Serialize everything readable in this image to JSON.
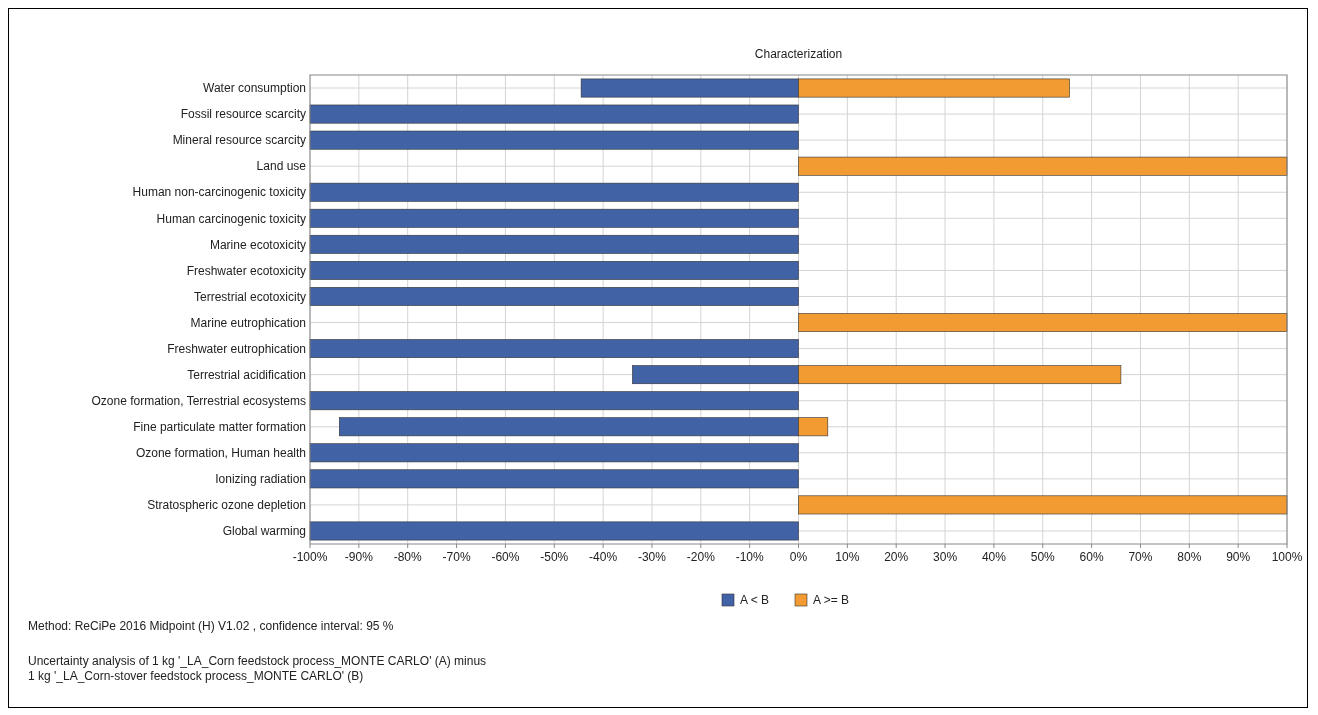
{
  "chart_data": {
    "type": "bar",
    "orientation": "horizontal",
    "stacked": true,
    "title": "Characterization",
    "categories": [
      "Water consumption",
      "Fossil resource scarcity",
      "Mineral resource scarcity",
      "Land use",
      "Human non-carcinogenic toxicity",
      "Human carcinogenic toxicity",
      "Marine ecotoxicity",
      "Freshwater ecotoxicity",
      "Terrestrial ecotoxicity",
      "Marine eutrophication",
      "Freshwater eutrophication",
      "Terrestrial acidification",
      "Ozone formation, Terrestrial ecosystems",
      "Fine particulate matter formation",
      "Ozone formation, Human health",
      "Ionizing radiation",
      "Stratospheric ozone depletion",
      "Global warming"
    ],
    "series": [
      {
        "name": "A < B",
        "color": "#4163a5",
        "values": [
          -44.5,
          -100,
          -100,
          0,
          -100,
          -100,
          -100,
          -100,
          -100,
          0,
          -100,
          -34,
          -100,
          -94,
          -100,
          -100,
          0,
          -100
        ]
      },
      {
        "name": "A >= B",
        "color": "#f29b33",
        "values": [
          55.5,
          0,
          0,
          100,
          0,
          0,
          0,
          0,
          0,
          100,
          0,
          66,
          0,
          6,
          0,
          0,
          100,
          0
        ]
      }
    ],
    "xlim": [
      -100,
      100
    ],
    "xticks": [
      {
        "value": -100,
        "label": "-100%"
      },
      {
        "value": -90,
        "label": "-90%"
      },
      {
        "value": -80,
        "label": "-80%"
      },
      {
        "value": -70,
        "label": "-70%"
      },
      {
        "value": -60,
        "label": "-60%"
      },
      {
        "value": -50,
        "label": "-50%"
      },
      {
        "value": -40,
        "label": "-40%"
      },
      {
        "value": -30,
        "label": "-30%"
      },
      {
        "value": -20,
        "label": "-20%"
      },
      {
        "value": -10,
        "label": "-10%"
      },
      {
        "value": 0,
        "label": "0%"
      },
      {
        "value": 10,
        "label": "10%"
      },
      {
        "value": 20,
        "label": "20%"
      },
      {
        "value": 30,
        "label": "30%"
      },
      {
        "value": 40,
        "label": "40%"
      },
      {
        "value": 50,
        "label": "50%"
      },
      {
        "value": 60,
        "label": "60%"
      },
      {
        "value": 70,
        "label": "70%"
      },
      {
        "value": 80,
        "label": "80%"
      },
      {
        "value": 90,
        "label": "90%"
      },
      {
        "value": 100,
        "label": "100%"
      }
    ],
    "grid": true,
    "legend": "bottom",
    "annotations": [
      "Method: ReCiPe 2016 Midpoint (H) V1.02 , confidence interval: 95 %",
      "Uncertainty analysis of 1 kg '_LA_Corn feedstock process_MONTE CARLO' (A) minus\n1 kg '_LA_Corn-stover feedstock process_MONTE CARLO' (B)"
    ]
  }
}
